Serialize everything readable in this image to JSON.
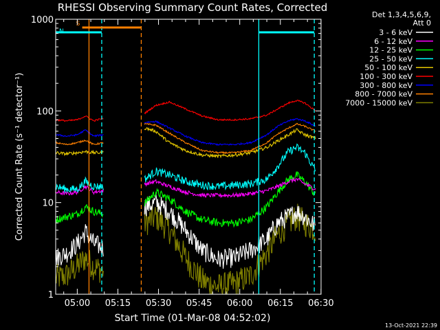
{
  "chart_data": {
    "type": "line",
    "title": "RHESSI Observing Summary Count Rates, Corrected",
    "xlabel": "Start Time (01-Mar-08 04:52:02)",
    "ylabel": "Corrected Count Rate (s⁻¹ detector⁻¹)",
    "ylog": true,
    "ylim": [
      1,
      1000
    ],
    "xlim_minutes_after_start": [
      0,
      98
    ],
    "x_ticks": [
      "05:00",
      "05:15",
      "05:30",
      "05:45",
      "06:00",
      "06:15",
      "06:30"
    ],
    "x_tick_minutes_after_start": [
      7.97,
      22.97,
      37.97,
      52.97,
      67.97,
      82.97,
      97.97
    ],
    "y_ticks": [
      "1",
      "10",
      "100",
      "1000"
    ],
    "y_tick_values": [
      1,
      10,
      100,
      1000
    ],
    "legend_header": [
      "Det 1,3,4,5,6,9,",
      "Att 0"
    ],
    "legend_position": "right",
    "timestamp": "13-Oct-2021 22:39",
    "data_gap_minutes": [
      17.8,
      32.8
    ],
    "flag_bars": [
      {
        "label": "S",
        "color": "#ff8000",
        "start": 9.8,
        "end": 31.6
      },
      {
        "label": "N",
        "color": "#00ffff",
        "start": 0,
        "end": 17.0
      },
      {
        "label": "",
        "color": "#00ffff",
        "start": 75.0,
        "end": 95.5
      }
    ],
    "vertical_markers": [
      {
        "minute": 12.3,
        "color": "#ff8000",
        "style": "solid"
      },
      {
        "minute": 31.6,
        "color": "#ff8000",
        "style": "dashed"
      },
      {
        "minute": 17.0,
        "color": "#00ffff",
        "style": "dashed"
      },
      {
        "minute": 75.0,
        "color": "#00ffff",
        "style": "solid"
      },
      {
        "minute": 95.5,
        "color": "#00ffff",
        "style": "dashed"
      }
    ],
    "x_sample_minutes": [
      0,
      4,
      8,
      11,
      14,
      17.5,
      33,
      37,
      42,
      48,
      54,
      60,
      66,
      72,
      78,
      82,
      86,
      89,
      92,
      96
    ],
    "series": [
      {
        "name": "3 - 6 keV",
        "color": "#ffffff",
        "noise": 0.25,
        "values": [
          2.5,
          2.8,
          3.5,
          4.8,
          3.6,
          3.2,
          9,
          10,
          8,
          5,
          3,
          2.4,
          2.5,
          3,
          4,
          6,
          7,
          8,
          7,
          5.5
        ]
      },
      {
        "name": "6 - 12 keV",
        "color": "#ff00ff",
        "noise": 0.05,
        "values": [
          13,
          12.5,
          13,
          15,
          13,
          13.5,
          16,
          17,
          15,
          13,
          12,
          12,
          12,
          12.5,
          13.5,
          15,
          17,
          18,
          16,
          14
        ]
      },
      {
        "name": "12 - 25 keV",
        "color": "#00ff00",
        "noise": 0.1,
        "values": [
          6.5,
          7,
          7.5,
          9,
          8,
          7.5,
          10,
          13,
          11,
          8,
          6.5,
          6,
          6,
          6.5,
          9,
          13,
          18,
          20,
          17,
          12
        ]
      },
      {
        "name": "25 - 50 keV",
        "color": "#00ffff",
        "noise": 0.1,
        "values": [
          15,
          14,
          14,
          17,
          15,
          15,
          18,
          22,
          20,
          17,
          15.5,
          15,
          15.5,
          16,
          18,
          25,
          36,
          40,
          35,
          22
        ]
      },
      {
        "name": "50 - 100 keV",
        "color": "#e6c800",
        "noise": 0.04,
        "values": [
          35,
          34,
          35,
          36,
          35,
          35,
          65,
          60,
          45,
          37,
          33,
          32,
          33,
          35,
          40,
          47,
          55,
          62,
          55,
          50
        ]
      },
      {
        "name": "100 - 300 keV",
        "color": "#ff0000",
        "noise": 0.02,
        "values": [
          80,
          78,
          80,
          88,
          78,
          83,
          95,
          115,
          125,
          105,
          88,
          80,
          80,
          82,
          90,
          105,
          122,
          130,
          122,
          100
        ]
      },
      {
        "name": "300 - 800 keV",
        "color": "#0000ff",
        "noise": 0.02,
        "values": [
          55,
          53,
          55,
          62,
          53,
          55,
          75,
          77,
          65,
          53,
          45,
          43,
          43,
          45,
          55,
          68,
          78,
          82,
          78,
          68
        ]
      },
      {
        "name": "800 - 7000 keV",
        "color": "#ff8000",
        "noise": 0.02,
        "values": [
          45,
          43,
          45,
          48,
          43,
          45,
          72,
          70,
          57,
          45,
          37,
          35,
          35,
          37,
          45,
          56,
          65,
          72,
          68,
          60
        ]
      },
      {
        "name": "7000 - 15000 keV",
        "color": "#808000",
        "noise": 0.35,
        "values": [
          1.5,
          1.6,
          2,
          2.5,
          2,
          1.8,
          6,
          7,
          5,
          2.5,
          1.4,
          1.2,
          1.3,
          1.6,
          2.8,
          4.5,
          6,
          7,
          6,
          5
        ]
      }
    ]
  }
}
